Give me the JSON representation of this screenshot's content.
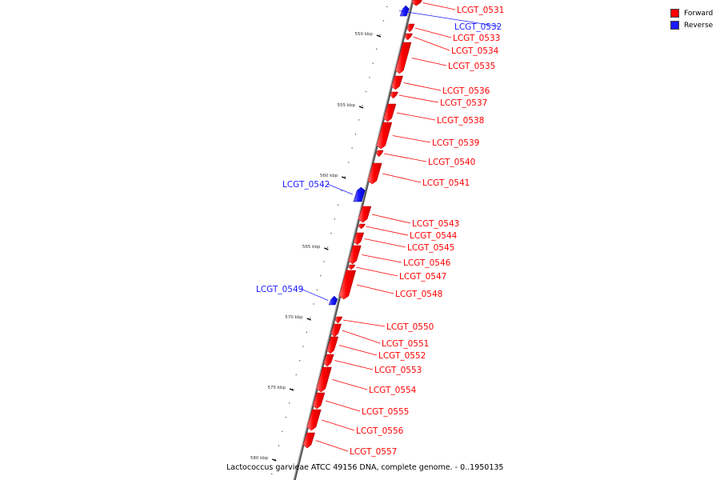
{
  "legend": {
    "forward": {
      "label": "Forward",
      "color": "#ff0000"
    },
    "reverse": {
      "label": "Reverse",
      "color": "#1a1aff"
    }
  },
  "caption": "Lactococcus garvieae ATCC 49156 DNA, complete genome. - 0..1950135",
  "axis_ticks": [
    {
      "kbp": 550,
      "label": "550 kbp"
    },
    {
      "kbp": 555,
      "label": "555 kbp"
    },
    {
      "kbp": 560,
      "label": "560 kbp"
    },
    {
      "kbp": 565,
      "label": "565 kbp"
    },
    {
      "kbp": 570,
      "label": "570 kbp"
    },
    {
      "kbp": 575,
      "label": "575 kbp"
    },
    {
      "kbp": 580,
      "label": "580 kbp"
    }
  ],
  "genes": [
    {
      "name": "LCGT_0531",
      "strand": "forward"
    },
    {
      "name": "LCGT_0532",
      "strand": "reverse"
    },
    {
      "name": "LCGT_0533",
      "strand": "forward"
    },
    {
      "name": "LCGT_0534",
      "strand": "forward"
    },
    {
      "name": "LCGT_0535",
      "strand": "forward"
    },
    {
      "name": "LCGT_0536",
      "strand": "forward"
    },
    {
      "name": "LCGT_0537",
      "strand": "forward"
    },
    {
      "name": "LCGT_0538",
      "strand": "forward"
    },
    {
      "name": "LCGT_0539",
      "strand": "forward"
    },
    {
      "name": "LCGT_0540",
      "strand": "forward"
    },
    {
      "name": "LCGT_0541",
      "strand": "forward"
    },
    {
      "name": "LCGT_0542",
      "strand": "reverse"
    },
    {
      "name": "LCGT_0543",
      "strand": "forward"
    },
    {
      "name": "LCGT_0544",
      "strand": "forward"
    },
    {
      "name": "LCGT_0545",
      "strand": "forward"
    },
    {
      "name": "LCGT_0546",
      "strand": "forward"
    },
    {
      "name": "LCGT_0547",
      "strand": "forward"
    },
    {
      "name": "LCGT_0548",
      "strand": "forward"
    },
    {
      "name": "LCGT_0549",
      "strand": "reverse"
    },
    {
      "name": "LCGT_0550",
      "strand": "forward"
    },
    {
      "name": "LCGT_0551",
      "strand": "forward"
    },
    {
      "name": "LCGT_0552",
      "strand": "forward"
    },
    {
      "name": "LCGT_0553",
      "strand": "forward"
    },
    {
      "name": "LCGT_0554",
      "strand": "forward"
    },
    {
      "name": "LCGT_0555",
      "strand": "forward"
    },
    {
      "name": "LCGT_0556",
      "strand": "forward"
    },
    {
      "name": "LCGT_0557",
      "strand": "forward"
    }
  ]
}
